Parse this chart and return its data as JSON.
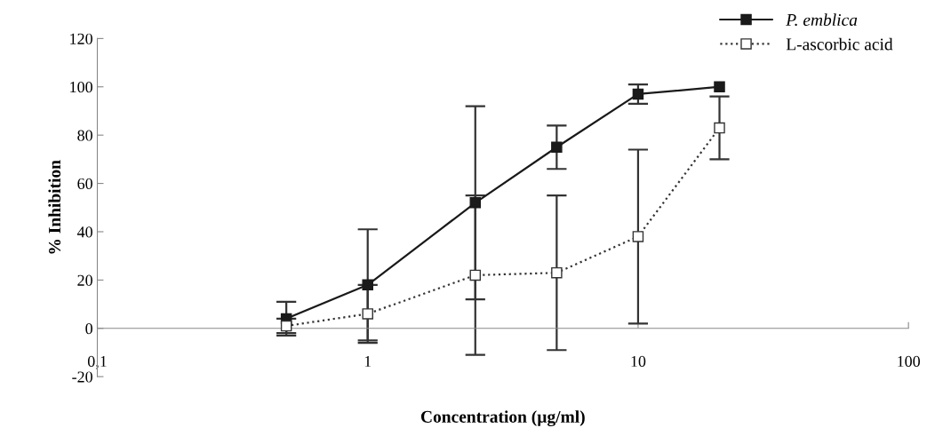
{
  "chart_data": {
    "type": "line",
    "xlabel": "Concentration (µg/ml)",
    "ylabel": "% Inhibition",
    "log": "x",
    "xlim": [
      0.1,
      100
    ],
    "xticks": [
      {
        "value": 0.1,
        "label": "0,1"
      },
      1,
      10,
      100
    ],
    "ylim": [
      -20,
      120
    ],
    "yticks": [
      -20,
      0,
      20,
      40,
      60,
      80,
      100,
      120
    ],
    "grid": false,
    "legend": "top right",
    "series": [
      {
        "name": "P. emblica",
        "color": "#1a1a1a",
        "marker": "square",
        "line_style": "solid",
        "x": [
          0.5,
          1,
          2.5,
          5,
          10,
          20
        ],
        "values": [
          4,
          18,
          52,
          75,
          97,
          100
        ],
        "errors": [
          7,
          23,
          40,
          9,
          4,
          null
        ]
      },
      {
        "name": "L-ascorbic acid",
        "color": "#333333",
        "marker": "square",
        "line_style": "dotted",
        "x": [
          0.5,
          1,
          2.5,
          5,
          10,
          20
        ],
        "values": [
          1,
          6,
          22,
          23,
          38,
          83
        ],
        "errors": [
          3,
          12,
          33,
          32,
          36,
          13
        ]
      }
    ]
  }
}
